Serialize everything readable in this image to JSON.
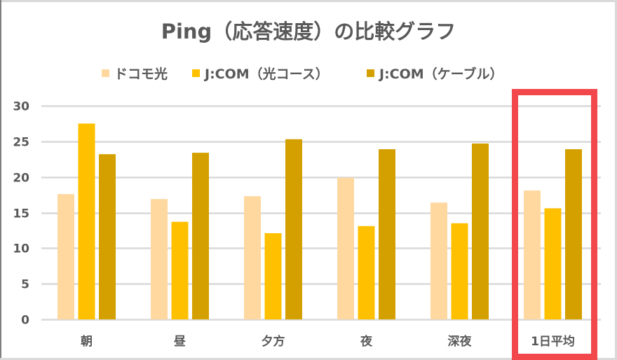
{
  "chart_data": {
    "type": "bar",
    "title": "Ping（応答速度）の比較グラフ",
    "xlabel": "",
    "ylabel": "",
    "categories": [
      "朝",
      "昼",
      "夕方",
      "夜",
      "深夜",
      "1日平均"
    ],
    "series": [
      {
        "name": "ドコモ光",
        "color": "#FFD8A0",
        "values": [
          17.6,
          16.9,
          17.3,
          19.9,
          16.4,
          18.1
        ]
      },
      {
        "name": "J:COM（光コース）",
        "color": "#FFC000",
        "values": [
          27.5,
          13.7,
          12.1,
          13.1,
          13.5,
          15.6
        ]
      },
      {
        "name": "J:COM（ケーブル）",
        "color": "#D4A000",
        "values": [
          23.2,
          23.4,
          25.3,
          23.9,
          24.7,
          23.9
        ]
      }
    ],
    "ylim": [
      0,
      30
    ],
    "yticks": [
      0,
      5,
      10,
      15,
      20,
      25,
      30
    ],
    "grid": true,
    "legend_position": "top",
    "highlight": {
      "category": "1日平均",
      "color": "#F2484B",
      "style": "rectangle outline"
    }
  }
}
